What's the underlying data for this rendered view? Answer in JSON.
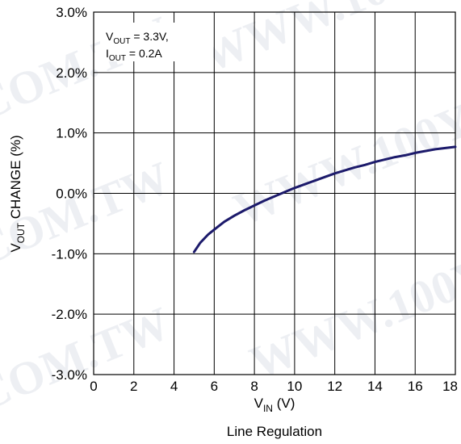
{
  "watermark": {
    "text_left": "COM.TW",
    "text_right": "WWW.100Y"
  },
  "chart_data": {
    "type": "line",
    "title": "Line Regulation",
    "xlabel": {
      "main": "V",
      "sub": "IN",
      "suffix": " (V)"
    },
    "ylabel": {
      "main": "V",
      "sub": "OUT",
      "suffix": " CHANGE (%)"
    },
    "xlim": [
      0,
      18
    ],
    "ylim": [
      -3,
      3
    ],
    "x_ticks": [
      0,
      2,
      4,
      6,
      8,
      10,
      12,
      14,
      16,
      18
    ],
    "x_tick_labels": [
      "0",
      "2",
      "4",
      "6",
      "8",
      "10",
      "12",
      "14",
      "16",
      "18"
    ],
    "y_ticks": [
      3,
      2,
      1,
      0,
      -1,
      -2,
      -3
    ],
    "y_tick_labels": [
      "3.0%",
      "2.0%",
      "1.0%",
      "0.0%",
      "-1.0%",
      "-2.0%",
      "-3.0%"
    ],
    "grid": true,
    "annotation": {
      "line1": {
        "main": "V",
        "sub": "OUT",
        "suffix": " = 3.3V,"
      },
      "line2": {
        "main": "I",
        "sub": "OUT",
        "suffix": " = 0.2A"
      }
    },
    "series": [
      {
        "color": "#1c1a6b",
        "x": [
          5.0,
          5.3,
          5.7,
          6.0,
          6.5,
          7.0,
          7.5,
          8.0,
          8.5,
          9.0,
          9.5,
          10.0,
          10.5,
          11.0,
          11.5,
          12.0,
          12.5,
          13.0,
          13.5,
          14.0,
          14.5,
          15.0,
          15.5,
          16.0,
          16.5,
          17.0,
          17.5,
          18.0
        ],
        "y": [
          -0.97,
          -0.82,
          -0.68,
          -0.6,
          -0.47,
          -0.37,
          -0.28,
          -0.2,
          -0.12,
          -0.05,
          0.02,
          0.09,
          0.15,
          0.21,
          0.27,
          0.33,
          0.38,
          0.43,
          0.47,
          0.52,
          0.56,
          0.6,
          0.63,
          0.67,
          0.7,
          0.73,
          0.75,
          0.77
        ]
      }
    ]
  }
}
